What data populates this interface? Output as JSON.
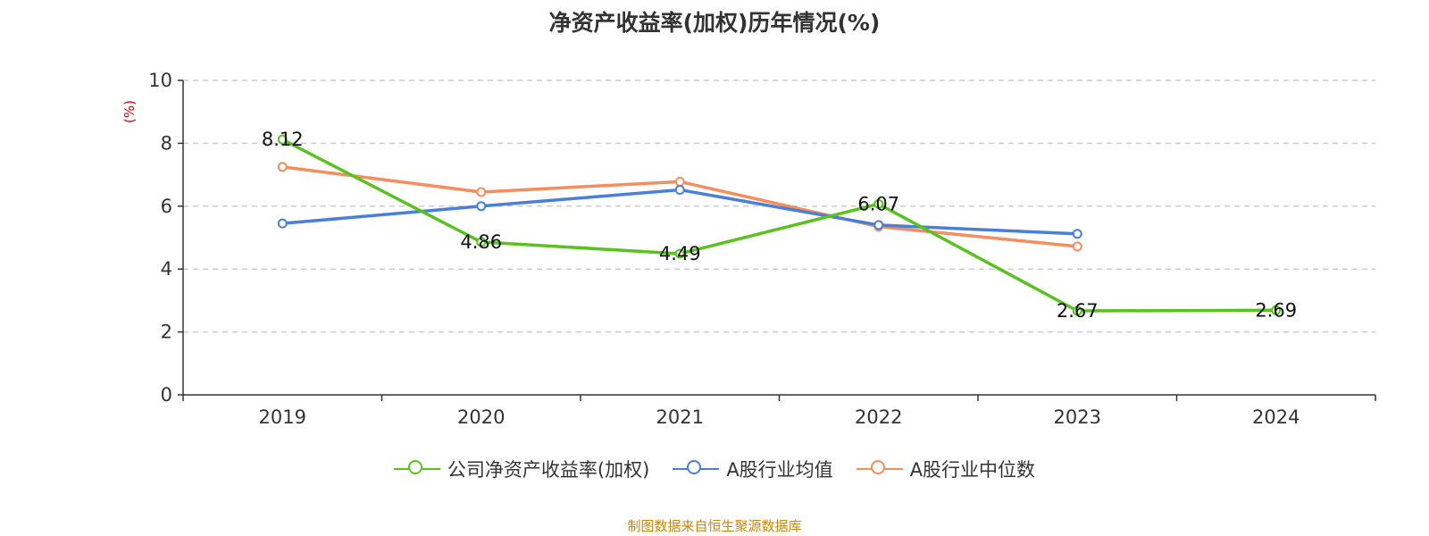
{
  "title": "净资产收益率(加权)历年情况(%)",
  "source": "制图数据来自恒生聚源数据库",
  "chart_data": {
    "type": "line",
    "title": "净资产收益率(加权)历年情况(%)",
    "ylabel": "(%)",
    "xlabel": "",
    "categories": [
      "2019",
      "2020",
      "2021",
      "2022",
      "2023",
      "2024"
    ],
    "ylim": [
      0,
      10
    ],
    "yticks": [
      0,
      2,
      4,
      6,
      8,
      10
    ],
    "grid": true,
    "legend_position": "bottom",
    "series": [
      {
        "name": "公司净资产收益率(加权)",
        "color": "#5ac21e",
        "values": [
          8.12,
          4.86,
          4.49,
          6.07,
          2.67,
          2.69
        ],
        "labels": [
          "8.12",
          "4.86",
          "4.49",
          "6.07",
          "2.67",
          "2.69"
        ]
      },
      {
        "name": "A股行业均值",
        "color": "#4a7fd9",
        "values": [
          5.45,
          6.0,
          6.52,
          5.4,
          5.12,
          null
        ]
      },
      {
        "name": "A股行业中位数",
        "color": "#f58d5d",
        "values": [
          7.25,
          6.45,
          6.78,
          5.35,
          4.72,
          null
        ]
      }
    ]
  }
}
